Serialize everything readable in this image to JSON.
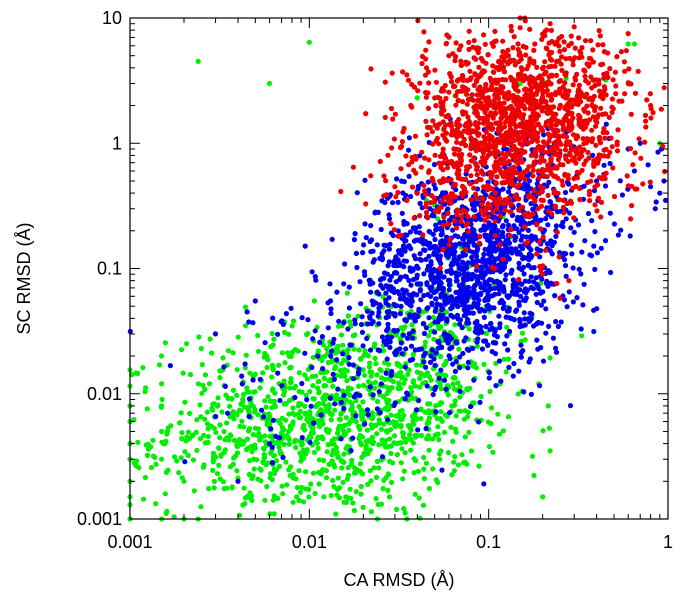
{
  "chart_data": {
    "type": "scatter",
    "title": "",
    "xlabel": "CA  RMSD (Å)",
    "ylabel": "SC  RMSD (Å)",
    "x_scale": "log",
    "y_scale": "log",
    "xlim": [
      0.001,
      1
    ],
    "ylim": [
      0.001,
      10
    ],
    "x_ticks": [
      0.001,
      0.01,
      0.1,
      1
    ],
    "x_tick_labels": [
      "0.001",
      "0.01",
      "0.1",
      "1"
    ],
    "y_ticks": [
      0.001,
      0.01,
      0.1,
      1,
      10
    ],
    "y_tick_labels": [
      "0.001",
      "0.01",
      "0.1",
      "1",
      "10"
    ],
    "grid": false,
    "legend": "none",
    "series": [
      {
        "color": "#00ee00",
        "clusters": [
          {
            "n": 900,
            "cx": 0.012,
            "cy": 0.006,
            "sx": 0.42,
            "sy": 0.38
          },
          {
            "n": 250,
            "cx": 0.035,
            "cy": 0.012,
            "sx": 0.28,
            "sy": 0.35
          },
          {
            "n": 120,
            "cx": 0.0035,
            "cy": 0.004,
            "sx": 0.25,
            "sy": 0.35
          },
          {
            "n": 70,
            "cx": 0.08,
            "cy": 0.03,
            "sx": 0.2,
            "sy": 0.3
          }
        ],
        "points": [
          [
            0.001,
            0.001
          ],
          [
            0.001,
            0.0013
          ],
          [
            0.001,
            0.0015
          ],
          [
            0.001,
            0.002
          ],
          [
            0.001,
            0.003
          ],
          [
            0.001,
            0.004
          ],
          [
            0.001,
            0.006
          ],
          [
            0.001,
            0.008
          ],
          [
            0.001,
            0.0115
          ],
          [
            0.001,
            0.0155
          ],
          [
            0.0015,
            0.001
          ],
          [
            0.0015,
            0.003
          ],
          [
            0.0015,
            0.005
          ],
          [
            0.0015,
            0.008
          ],
          [
            0.0015,
            0.012
          ],
          [
            0.0015,
            0.02
          ],
          [
            0.002,
            0.001
          ],
          [
            0.002,
            0.002
          ],
          [
            0.0024,
            0.001
          ],
          [
            0.0024,
            4.5
          ],
          [
            0.01,
            6.4
          ],
          [
            0.006,
            3.0
          ],
          [
            0.0085,
            0.0015
          ],
          [
            0.016,
            0.0015
          ],
          [
            0.024,
            0.001
          ],
          [
            0.028,
            0.0015
          ],
          [
            0.035,
            0.001
          ],
          [
            0.045,
            0.35
          ],
          [
            0.05,
            0.32
          ],
          [
            0.33,
            0.029
          ],
          [
            0.2,
            0.0015
          ],
          [
            0.215,
            0.008
          ],
          [
            0.19,
            0.012
          ],
          [
            0.22,
            0.0035
          ],
          [
            0.6,
            6.2
          ],
          [
            0.65,
            6.2
          ],
          [
            0.2,
            3.2
          ],
          [
            0.08,
            2.4
          ],
          [
            0.1,
            2.2
          ],
          [
            0.12,
            0.26
          ],
          [
            0.065,
            2.4
          ],
          [
            0.052,
            0.25
          ],
          [
            0.04,
            2.3
          ],
          [
            0.15,
            3.0
          ],
          [
            0.45,
            3.2
          ],
          [
            0.27,
            3.3
          ],
          [
            0.055,
            0.2
          ],
          [
            0.9,
            1.0
          ]
        ]
      },
      {
        "color": "#0000ee",
        "clusters": [
          {
            "n": 1100,
            "cx": 0.075,
            "cy": 0.1,
            "sx": 0.28,
            "sy": 0.38
          },
          {
            "n": 300,
            "cx": 0.15,
            "cy": 0.3,
            "sx": 0.25,
            "sy": 0.3
          },
          {
            "n": 180,
            "cx": 0.03,
            "cy": 0.03,
            "sx": 0.3,
            "sy": 0.35
          },
          {
            "n": 60,
            "cx": 0.008,
            "cy": 0.01,
            "sx": 0.3,
            "sy": 0.3
          }
        ],
        "points": [
          [
            0.85,
            0.3
          ],
          [
            0.9,
            0.4
          ],
          [
            0.95,
            0.5
          ],
          [
            0.88,
            0.85
          ],
          [
            0.92,
            0.9
          ],
          [
            0.97,
            0.35
          ],
          [
            0.8,
            0.45
          ],
          [
            0.6,
            0.9
          ],
          [
            0.7,
            1.0
          ],
          [
            0.65,
            0.6
          ],
          [
            0.004,
            0.002
          ],
          [
            0.0035,
            0.007
          ],
          [
            0.006,
            0.004
          ],
          [
            0.022,
            0.22
          ],
          [
            0.018,
            0.19
          ],
          [
            0.028,
            0.25
          ],
          [
            0.0045,
            0.045
          ],
          [
            0.005,
            0.055
          ],
          [
            0.38,
            0.8
          ],
          [
            0.4,
            0.5
          ]
        ]
      },
      {
        "color": "#ee0000",
        "clusters": [
          {
            "n": 1100,
            "cx": 0.13,
            "cy": 1.4,
            "sx": 0.26,
            "sy": 0.36
          },
          {
            "n": 260,
            "cx": 0.25,
            "cy": 2.5,
            "sx": 0.25,
            "sy": 0.25
          },
          {
            "n": 150,
            "cx": 0.08,
            "cy": 0.5,
            "sx": 0.2,
            "sy": 0.25
          },
          {
            "n": 90,
            "cx": 0.3,
            "cy": 0.8,
            "sx": 0.2,
            "sy": 0.3
          }
        ],
        "points": [
          [
            0.15,
            10
          ],
          [
            0.16,
            9.5
          ],
          [
            0.22,
            9.0
          ],
          [
            0.3,
            8.5
          ],
          [
            0.6,
            7.5
          ],
          [
            0.035,
            0.35
          ],
          [
            0.03,
            0.45
          ],
          [
            0.04,
            0.4
          ],
          [
            0.026,
            0.38
          ],
          [
            0.045,
            0.28
          ],
          [
            0.022,
            0.55
          ],
          [
            0.25,
            0.058
          ],
          [
            0.28,
            0.08
          ],
          [
            0.2,
            0.09
          ],
          [
            0.8,
            2.0
          ],
          [
            0.75,
            1.5
          ],
          [
            0.05,
            2.3
          ],
          [
            0.045,
            4.0
          ],
          [
            0.06,
            5.0
          ],
          [
            0.07,
            6.0
          ]
        ]
      }
    ]
  }
}
